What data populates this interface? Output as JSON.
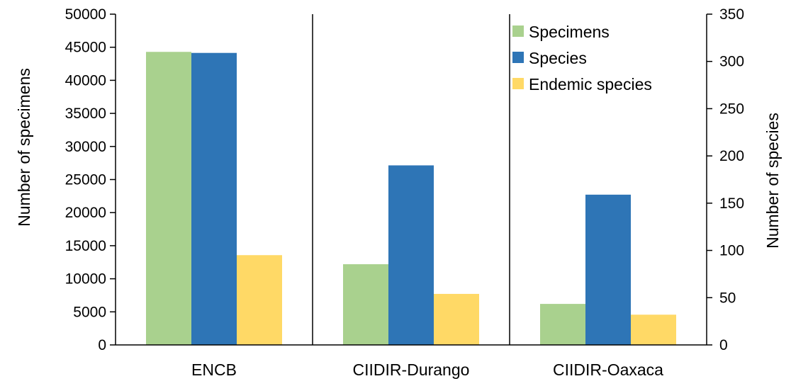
{
  "chart_data": {
    "type": "bar",
    "categories": [
      "ENCB",
      "CIIDIR-Durango",
      "CIIDIR-Oaxaca"
    ],
    "series": [
      {
        "name": "Specimens",
        "axis": "left",
        "color": "#a9d18e",
        "values": [
          44300,
          12200,
          6200
        ]
      },
      {
        "name": "Species",
        "axis": "right",
        "color": "#2e75b6",
        "values": [
          309,
          190,
          159
        ]
      },
      {
        "name": "Endemic species",
        "axis": "right",
        "color": "#ffd966",
        "values": [
          95,
          54,
          32
        ]
      }
    ],
    "ylabel": "Number of specimens",
    "y2label": "Number of species",
    "ylim": [
      0,
      50000
    ],
    "y2lim": [
      0,
      350
    ],
    "yticks": [
      "0",
      "5000",
      "10000",
      "15000",
      "20000",
      "25000",
      "30000",
      "35000",
      "40000",
      "45000",
      "50000"
    ],
    "y2ticks": [
      "0",
      "50",
      "100",
      "150",
      "200",
      "250",
      "300",
      "350"
    ],
    "legend_position": "top-right",
    "grid": false
  }
}
